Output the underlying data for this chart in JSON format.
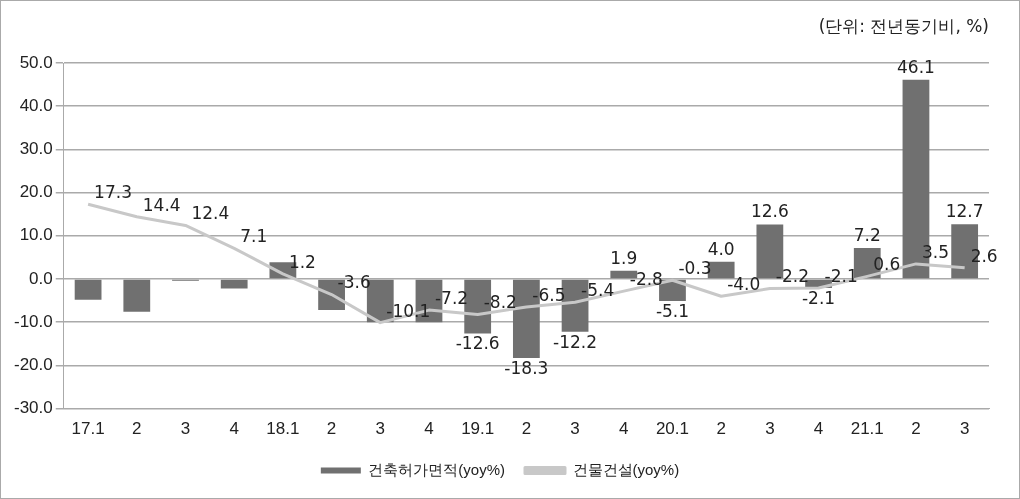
{
  "chart_data": {
    "type": "bar",
    "annotations": [
      "(단위: 전년동기비, %)"
    ],
    "categories": [
      "17.1",
      "2",
      "3",
      "4",
      "18.1",
      "2",
      "3",
      "4",
      "19.1",
      "2",
      "3",
      "4",
      "20.1",
      "2",
      "3",
      "4",
      "21.1",
      "2",
      "3"
    ],
    "series": [
      {
        "name": "건축허가면적(yoy%)",
        "color": "#707070",
        "values": [
          -4.8,
          -7.6,
          -0.4,
          -2.2,
          3.9,
          -7.2,
          -10.0,
          -10.0,
          -12.6,
          -18.3,
          -12.2,
          1.9,
          -5.1,
          4.0,
          12.6,
          -2.1,
          7.2,
          46.1,
          12.7
        ],
        "value_labels": [
          null,
          null,
          null,
          null,
          null,
          null,
          null,
          null,
          "-12.6",
          "-18.3",
          "-12.2",
          "1.9",
          "-5.1",
          "4.0",
          "12.6",
          "-2.1",
          "7.2",
          "46.1",
          "12.7"
        ]
      },
      {
        "name": "건물건설(yoy%)",
        "type": "line",
        "color": "#c8c8c8",
        "values": [
          17.3,
          14.4,
          12.4,
          7.1,
          1.2,
          -3.6,
          -10.1,
          -7.2,
          -8.2,
          -6.5,
          -5.4,
          -2.8,
          -0.3,
          -4.0,
          -2.2,
          -2.1,
          0.6,
          3.5,
          2.6
        ],
        "value_labels": [
          "17.3",
          "14.4",
          "12.4",
          "7.1",
          "1.2",
          "-3.6",
          "-10.1",
          "-7.2",
          "-8.2",
          "-6.5",
          "-5.4",
          "-2.8",
          "-0.3",
          "-4.0",
          "-2.2",
          "-2.1",
          "0.6",
          "3.5",
          "2.6"
        ]
      }
    ],
    "ylim": [
      -30,
      50
    ],
    "yticks": [
      {
        "value": -30,
        "label": "-30.0"
      },
      {
        "value": -20,
        "label": "-20.0"
      },
      {
        "value": -10,
        "label": "-10.0"
      },
      {
        "value": 0,
        "label": "0.0"
      },
      {
        "value": 10,
        "label": "10.0"
      },
      {
        "value": 20,
        "label": "20.0"
      },
      {
        "value": 30,
        "label": "30.0"
      },
      {
        "value": 40,
        "label": "40.0"
      },
      {
        "value": 50,
        "label": "50.0"
      }
    ],
    "grid": "y",
    "legend": "bottom",
    "marker": "none"
  }
}
